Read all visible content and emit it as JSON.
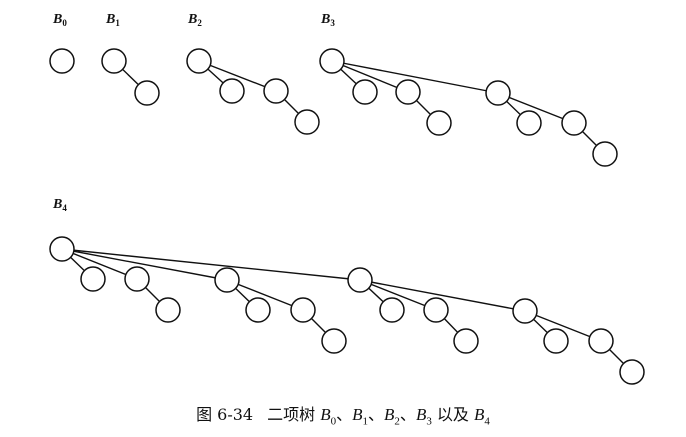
{
  "trees": [
    {
      "id": "B0",
      "label": "B",
      "sub": "0"
    },
    {
      "id": "B1",
      "label": "B",
      "sub": "1"
    },
    {
      "id": "B2",
      "label": "B",
      "sub": "2"
    },
    {
      "id": "B3",
      "label": "B",
      "sub": "3"
    },
    {
      "id": "B4",
      "label": "B",
      "sub": "4"
    }
  ],
  "caption": {
    "figure_number": "图 6-34",
    "text": "二项树",
    "items": [
      {
        "label": "B",
        "sub": "0"
      },
      {
        "label": "B",
        "sub": "1"
      },
      {
        "label": "B",
        "sub": "2"
      },
      {
        "label": "B",
        "sub": "3"
      },
      {
        "label": "B",
        "sub": "4"
      }
    ],
    "separator": "、",
    "conjunction": "以及"
  },
  "colors": {
    "stroke": "#111111",
    "node_fill": "#ffffff"
  }
}
